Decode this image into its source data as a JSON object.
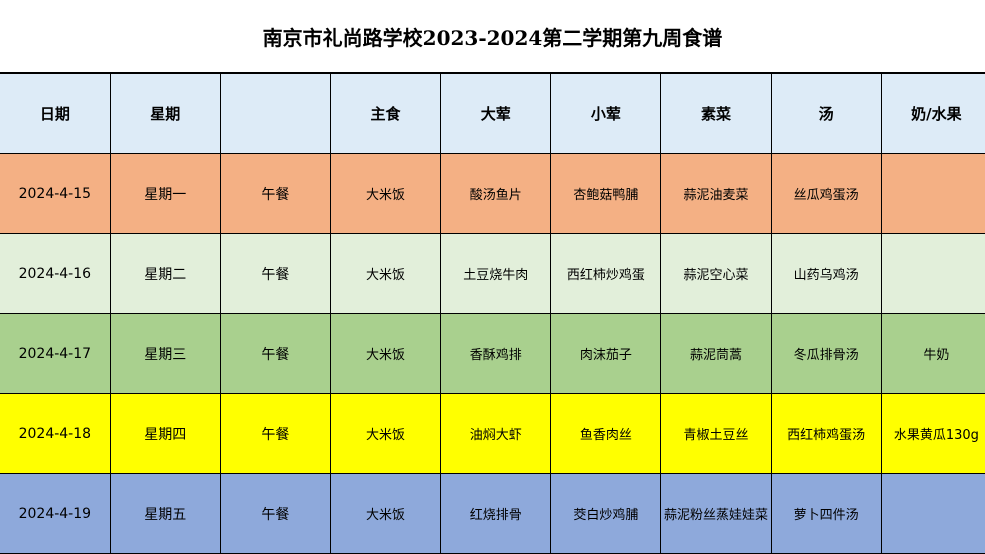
{
  "title": "南京市礼尚路学校2023-2024第二学期第九周食谱",
  "headers": [
    "日期",
    "星期",
    "",
    "主食",
    "大荤",
    "小荤",
    "素菜",
    "汤",
    "奶/水果"
  ],
  "colors": {
    "header": "#DDEBF7",
    "rows": [
      "#F4B084",
      "#E2EFDA",
      "#A9D08E",
      "#FFFF00",
      "#8EA9DB"
    ]
  },
  "rows": [
    {
      "date": "2024-4-15",
      "day": "星期一",
      "meal": "午餐",
      "staple": "大米饭",
      "main": "酸汤鱼片",
      "side": "杏鲍菇鸭脯",
      "veg": "蒜泥油麦菜",
      "soup": "丝瓜鸡蛋汤",
      "extra": ""
    },
    {
      "date": "2024-4-16",
      "day": "星期二",
      "meal": "午餐",
      "staple": "大米饭",
      "main": "土豆烧牛肉",
      "side": "西红柿炒鸡蛋",
      "veg": "蒜泥空心菜",
      "soup": "山药乌鸡汤",
      "extra": ""
    },
    {
      "date": "2024-4-17",
      "day": "星期三",
      "meal": "午餐",
      "staple": "大米饭",
      "main": "香酥鸡排",
      "side": "肉沫茄子",
      "veg": "蒜泥茼蒿",
      "soup": "冬瓜排骨汤",
      "extra": "牛奶"
    },
    {
      "date": "2024-4-18",
      "day": "星期四",
      "meal": "午餐",
      "staple": "大米饭",
      "main": "油焖大虾",
      "side": "鱼香肉丝",
      "veg": "青椒土豆丝",
      "soup": "西红柿鸡蛋汤",
      "extra": "水果黄瓜130g"
    },
    {
      "date": "2024-4-19",
      "day": "星期五",
      "meal": "午餐",
      "staple": "大米饭",
      "main": "红烧排骨",
      "side": "茭白炒鸡脯",
      "veg": "蒜泥粉丝蒸娃娃菜",
      "soup": "萝卜四件汤",
      "extra": ""
    }
  ]
}
